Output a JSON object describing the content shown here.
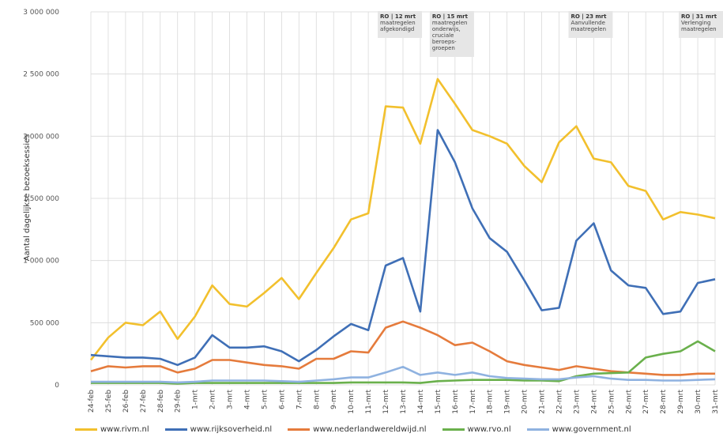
{
  "chart_data": {
    "type": "line",
    "ylabel": "Aantal dagelijkse bezoeksessies",
    "ylim": [
      0,
      3000000
    ],
    "yticks": [
      {
        "value": 0,
        "label": "0"
      },
      {
        "value": 500000,
        "label": "500 000"
      },
      {
        "value": 1000000,
        "label": "1 000 000"
      },
      {
        "value": 1500000,
        "label": "1 500 000"
      },
      {
        "value": 2000000,
        "label": "2 000 000"
      },
      {
        "value": 2500000,
        "label": "2 500 000"
      },
      {
        "value": 3000000,
        "label": "3 000 000"
      }
    ],
    "grid": true,
    "legend_position": "bottom",
    "categories": [
      "24-feb",
      "25-feb",
      "26-feb",
      "27-feb",
      "28-feb",
      "29-feb",
      "1-mrt",
      "2-mrt",
      "3-mrt",
      "4-mrt",
      "5-mrt",
      "6-mrt",
      "7-mrt",
      "8-mrt",
      "9-mrt",
      "10-mrt",
      "11-mrt",
      "12-mrt",
      "13-mrt",
      "14-mrt",
      "15-mrt",
      "16-mrt",
      "17-mrt",
      "18-mrt",
      "19-mrt",
      "20-mrt",
      "21-mrt",
      "22-mrt",
      "23-mrt",
      "24-mrt",
      "25-mrt",
      "26-mrt",
      "27-mrt",
      "28-mrt",
      "29-mrt",
      "30-mrt",
      "31-mrt"
    ],
    "series": [
      {
        "name": "www.rivm.nl",
        "color": "#f2c02d",
        "values": [
          200000,
          380000,
          500000,
          480000,
          590000,
          370000,
          550000,
          800000,
          650000,
          630000,
          740000,
          860000,
          690000,
          900000,
          1100000,
          1330000,
          1380000,
          2240000,
          2230000,
          1940000,
          2460000,
          2260000,
          2050000,
          2000000,
          1940000,
          1760000,
          1630000,
          1950000,
          2080000,
          1820000,
          1790000,
          1600000,
          1560000,
          1330000,
          1390000,
          1370000,
          1340000
        ]
      },
      {
        "name": "www.rijksoverheid.nl",
        "color": "#3f6fb6",
        "values": [
          240000,
          230000,
          220000,
          220000,
          210000,
          160000,
          220000,
          400000,
          300000,
          300000,
          310000,
          270000,
          190000,
          280000,
          390000,
          490000,
          440000,
          960000,
          1020000,
          590000,
          2050000,
          1790000,
          1420000,
          1180000,
          1070000,
          840000,
          600000,
          620000,
          1160000,
          1300000,
          920000,
          800000,
          780000,
          570000,
          590000,
          820000,
          850000
        ]
      },
      {
        "name": "www.nederlandwereldwijd.nl",
        "color": "#e57b3c",
        "values": [
          110000,
          150000,
          140000,
          150000,
          150000,
          100000,
          130000,
          200000,
          200000,
          180000,
          160000,
          150000,
          130000,
          210000,
          210000,
          270000,
          260000,
          460000,
          510000,
          460000,
          400000,
          320000,
          340000,
          270000,
          190000,
          160000,
          140000,
          120000,
          150000,
          130000,
          110000,
          100000,
          90000,
          80000,
          80000,
          90000,
          90000
        ]
      },
      {
        "name": "www.rvo.nl",
        "color": "#6ab04c",
        "values": [
          15000,
          15000,
          15000,
          15000,
          15000,
          10000,
          15000,
          15000,
          15000,
          15000,
          15000,
          15000,
          15000,
          15000,
          15000,
          20000,
          20000,
          20000,
          20000,
          15000,
          30000,
          35000,
          40000,
          40000,
          40000,
          35000,
          35000,
          30000,
          70000,
          90000,
          95000,
          100000,
          220000,
          250000,
          270000,
          350000,
          270000
        ]
      },
      {
        "name": "www.government.nl",
        "color": "#8fb2e0",
        "values": [
          25000,
          25000,
          25000,
          25000,
          25000,
          20000,
          25000,
          35000,
          35000,
          35000,
          35000,
          30000,
          25000,
          35000,
          45000,
          60000,
          60000,
          100000,
          145000,
          80000,
          100000,
          80000,
          100000,
          70000,
          55000,
          50000,
          45000,
          45000,
          60000,
          70000,
          50000,
          40000,
          40000,
          35000,
          35000,
          40000,
          45000
        ]
      }
    ],
    "annotations": [
      {
        "category": "12-mrt",
        "title": "RO | 12 mrt",
        "lines": [
          "maatregelen",
          "afgekondigd"
        ]
      },
      {
        "category": "15-mrt",
        "title": "RO | 15 mrt",
        "lines": [
          "maatregelen",
          "onderwijs,",
          "cruciale",
          "beroeps-",
          "groepen"
        ]
      },
      {
        "category": "23-mrt",
        "title": "RO | 23 mrt",
        "lines": [
          "Aanvullende",
          "maatregelen"
        ]
      },
      {
        "category": "31-mrt",
        "title": "RO | 31 mrt",
        "lines": [
          "Verlenging",
          "maatregelen"
        ]
      }
    ]
  }
}
